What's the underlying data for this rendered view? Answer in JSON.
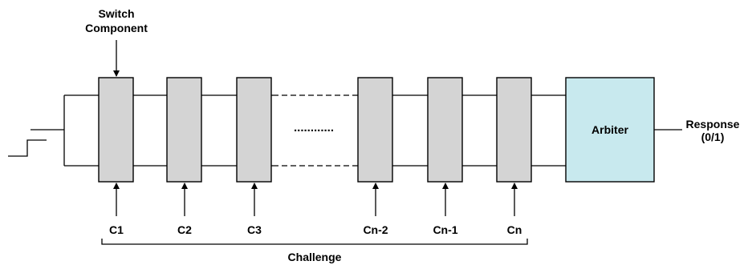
{
  "diagram": {
    "switch_label_line1": "Switch",
    "switch_label_line2": "Component",
    "ellipsis": "............",
    "arbiter_label": "Arbiter",
    "response_line1": "Response",
    "response_line2": "(0/1)",
    "challenge_label": "Challenge",
    "challenges": [
      "C1",
      "C2",
      "C3",
      "Cn-2",
      "Cn-1",
      "Cn"
    ],
    "colors": {
      "switch_fill": "#d4d4d4",
      "arbiter_fill": "#c8e9ee",
      "line": "#000000"
    }
  }
}
